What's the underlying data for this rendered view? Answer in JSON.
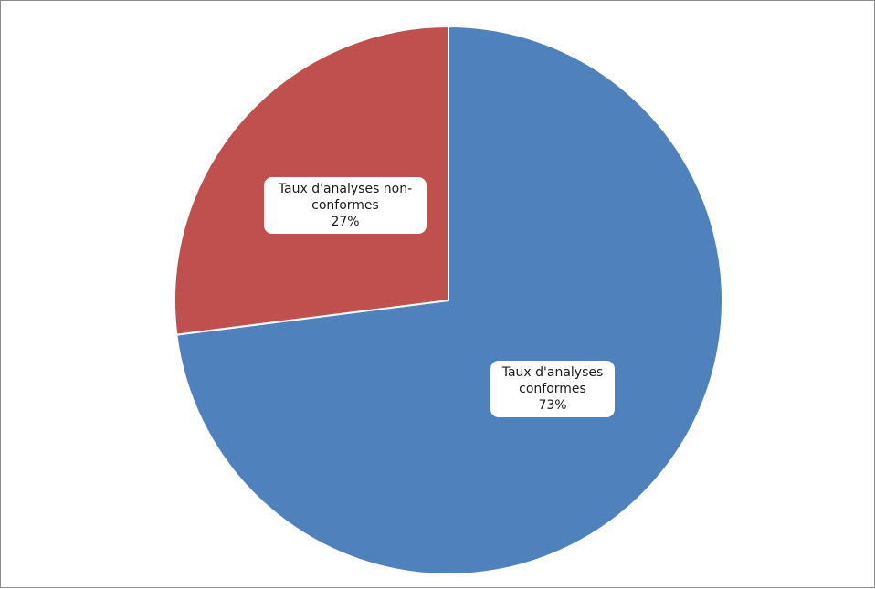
{
  "chart_data": {
    "type": "pie",
    "title": "",
    "start_angle_deg": 0,
    "direction": "clockwise",
    "slices": [
      {
        "label_lines": [
          "Taux d'analyses",
          "conformes"
        ],
        "value": 73,
        "value_label": "73%",
        "color": "#4f81bd"
      },
      {
        "label_lines": [
          "Taux d'analyses non-",
          "conformes"
        ],
        "value": 27,
        "value_label": "27%",
        "color": "#c0504d"
      }
    ],
    "legend": "none"
  }
}
